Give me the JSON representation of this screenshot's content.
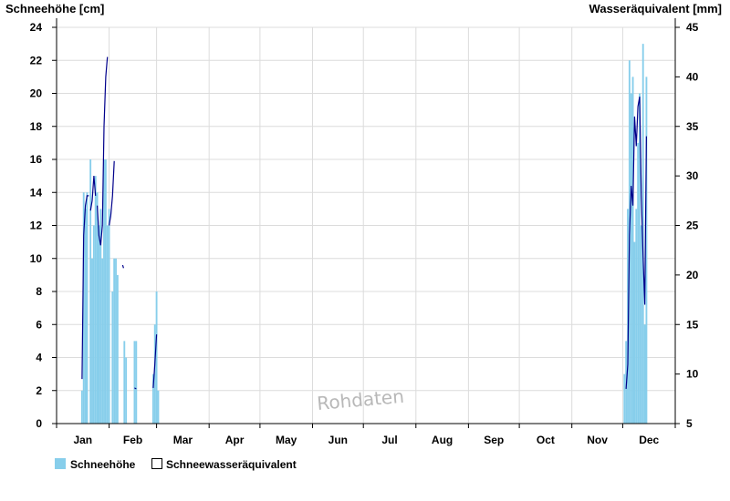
{
  "chart_data": {
    "type": "bar",
    "left_axis_label": "Schneehöhe [cm]",
    "right_axis_label": "Wasseräquivalent [mm]",
    "left_ylim": [
      0,
      24
    ],
    "left_ticks": [
      "0",
      "2",
      "4",
      "6",
      "8",
      "10",
      "12",
      "14",
      "16",
      "18",
      "20",
      "22",
      "24"
    ],
    "right_ylim": [
      5,
      45
    ],
    "right_ticks": [
      "5",
      "10",
      "15",
      "20",
      "25",
      "30",
      "35",
      "40",
      "45"
    ],
    "x_days": 365,
    "months": [
      "Jan",
      "Feb",
      "Mar",
      "Apr",
      "May",
      "Jun",
      "Jul",
      "Aug",
      "Sep",
      "Oct",
      "Nov",
      "Dec"
    ],
    "grid": true,
    "legend_position": "bottom-left",
    "watermark": "Rohdaten",
    "colors": {
      "snow_depth": "#87ceeb",
      "swe": "#00008b",
      "grid": "#dcdcdc"
    },
    "series": [
      {
        "name": "Schneehöhe",
        "kind": "bar",
        "points": [
          [
            15,
            2
          ],
          [
            16,
            14
          ],
          [
            17,
            13
          ],
          [
            18,
            14
          ],
          [
            20,
            16
          ],
          [
            21,
            10
          ],
          [
            22,
            12
          ],
          [
            23,
            15
          ],
          [
            24,
            14
          ],
          [
            25,
            12
          ],
          [
            26,
            13
          ],
          [
            27,
            10
          ],
          [
            28,
            16
          ],
          [
            29,
            16
          ],
          [
            30,
            12
          ],
          [
            31,
            13
          ],
          [
            33,
            8
          ],
          [
            34,
            10
          ],
          [
            35,
            10
          ],
          [
            36,
            9
          ],
          [
            40,
            5
          ],
          [
            41,
            4
          ],
          [
            46,
            5
          ],
          [
            47,
            5
          ],
          [
            57,
            3
          ],
          [
            58,
            6
          ],
          [
            59,
            8
          ],
          [
            60,
            2
          ],
          [
            335,
            3
          ],
          [
            336,
            5
          ],
          [
            337,
            13
          ],
          [
            338,
            22
          ],
          [
            339,
            20
          ],
          [
            340,
            21
          ],
          [
            341,
            11
          ],
          [
            342,
            13
          ],
          [
            343,
            17
          ],
          [
            344,
            20
          ],
          [
            345,
            12
          ],
          [
            346,
            23
          ],
          [
            347,
            6
          ],
          [
            348,
            21
          ]
        ]
      },
      {
        "name": "Schneewasseräquivalent",
        "kind": "line",
        "segments": [
          [
            [
              15,
              9.5
            ],
            [
              16,
              24.0
            ],
            [
              17,
              27.0
            ],
            [
              18,
              28.0
            ],
            [
              19,
              28.0
            ]
          ],
          [
            [
              20,
              26.5
            ],
            [
              21,
              27.5
            ],
            [
              22,
              30.0
            ],
            [
              23,
              28.0
            ]
          ],
          [
            [
              24,
              27.0
            ],
            [
              25,
              24.0
            ],
            [
              26,
              23.0
            ],
            [
              27,
              25.0
            ],
            [
              28,
              35.0
            ],
            [
              29,
              40.0
            ],
            [
              30,
              42.0
            ]
          ],
          [
            [
              31,
              25.0
            ],
            [
              32,
              26.0
            ],
            [
              33,
              28.0
            ],
            [
              34,
              31.5
            ]
          ],
          [
            [
              39,
              21.0
            ],
            [
              39.5,
              20.7
            ]
          ],
          [
            [
              46,
              8.6
            ],
            [
              47,
              8.5
            ]
          ],
          [
            [
              57,
              8.6
            ],
            [
              58,
              11.0
            ],
            [
              59,
              14.0
            ]
          ],
          [
            [
              336,
              8.5
            ],
            [
              337,
              11.0
            ],
            [
              338,
              24.0
            ],
            [
              339,
              29.0
            ],
            [
              340,
              27.0
            ],
            [
              341,
              36.0
            ],
            [
              342,
              33.0
            ],
            [
              343,
              37.0
            ],
            [
              344,
              38.0
            ],
            [
              345,
              28.0
            ],
            [
              346,
              22.0
            ],
            [
              347,
              17.0
            ],
            [
              348,
              34.0
            ]
          ]
        ]
      }
    ]
  }
}
